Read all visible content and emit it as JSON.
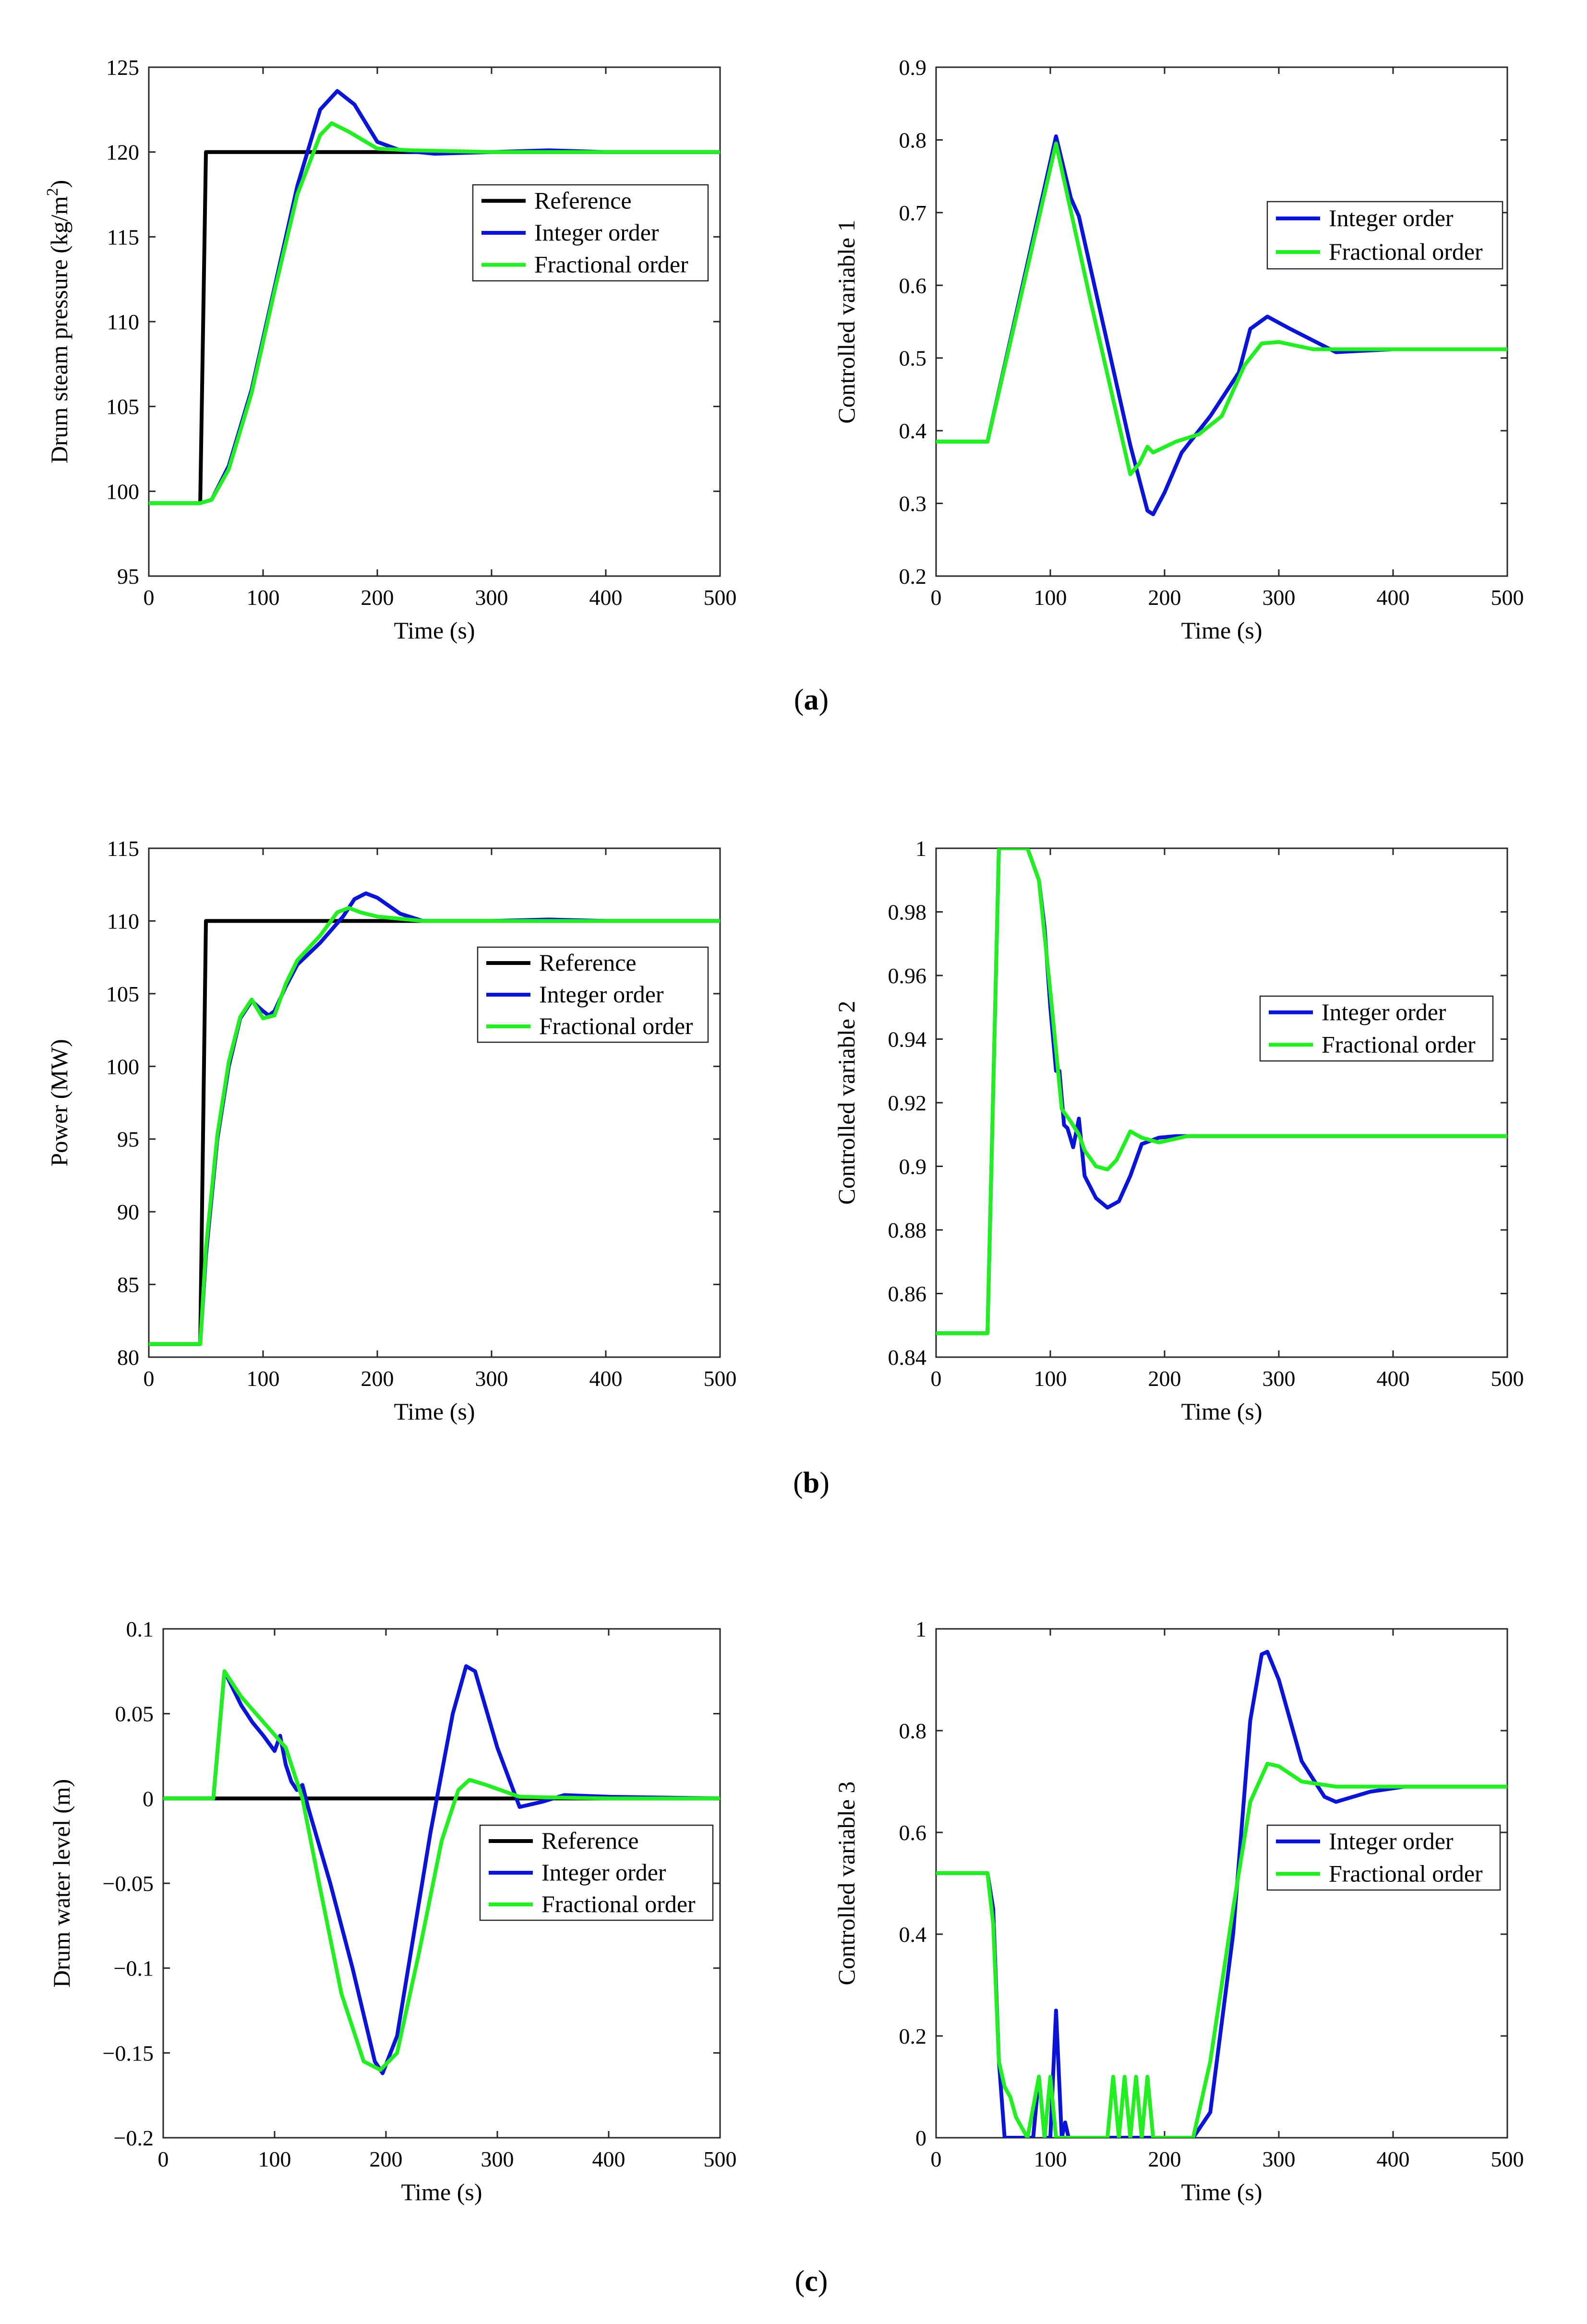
{
  "figure": {
    "captions": [
      {
        "open": "(",
        "letter": "a",
        "close": ")"
      },
      {
        "open": "(",
        "letter": "b",
        "close": ")"
      },
      {
        "open": "(",
        "letter": "c",
        "close": ")"
      }
    ]
  },
  "colors": {
    "Reference": "#000000",
    "Integer order": "#0a14d6",
    "Fractional order": "#22ee22"
  },
  "chart_data": [
    {
      "type": "line",
      "panel": "a-left",
      "title": "",
      "xlabel": "Time (s)",
      "ylabel": "Drum steam pressure (kg/m",
      "ylabel_sup": "2",
      "ylabel_suffix": ")",
      "xlim": [
        0,
        500
      ],
      "ylim": [
        95,
        125
      ],
      "xticks": [
        0,
        100,
        200,
        300,
        400,
        500
      ],
      "yticks": [
        95,
        100,
        105,
        110,
        115,
        120,
        125
      ],
      "legend": "inside",
      "series": [
        {
          "name": "Reference",
          "x": [
            0,
            45,
            50,
            500
          ],
          "y": [
            99.3,
            99.3,
            120,
            120
          ]
        },
        {
          "name": "Integer order",
          "x": [
            0,
            45,
            55,
            70,
            90,
            110,
            130,
            150,
            165,
            180,
            200,
            220,
            250,
            300,
            350,
            400,
            500
          ],
          "y": [
            99.3,
            99.3,
            99.5,
            101.5,
            106,
            112,
            118,
            122.5,
            123.6,
            122.8,
            120.6,
            120.1,
            119.9,
            120,
            120.1,
            120,
            120
          ]
        },
        {
          "name": "Fractional order",
          "x": [
            0,
            45,
            55,
            70,
            90,
            110,
            130,
            150,
            160,
            175,
            200,
            230,
            300,
            400,
            500
          ],
          "y": [
            99.3,
            99.3,
            99.5,
            101.3,
            105.8,
            111.8,
            117.5,
            121,
            121.7,
            121.2,
            120.2,
            120.1,
            120,
            120,
            120
          ]
        }
      ]
    },
    {
      "type": "line",
      "panel": "a-right",
      "title": "",
      "xlabel": "Time (s)",
      "ylabel": "Controlled variable 1",
      "xlim": [
        0,
        500
      ],
      "ylim": [
        0.2,
        0.9
      ],
      "xticks": [
        0,
        100,
        200,
        300,
        400,
        500
      ],
      "yticks": [
        0.2,
        0.3,
        0.4,
        0.5,
        0.6,
        0.7,
        0.8,
        0.9
      ],
      "legend": "inside",
      "series": [
        {
          "name": "Integer order",
          "x": [
            0,
            45,
            105,
            118,
            125,
            150,
            170,
            185,
            190,
            200,
            215,
            240,
            265,
            275,
            290,
            310,
            350,
            400,
            500
          ],
          "y": [
            0.385,
            0.385,
            0.805,
            0.72,
            0.695,
            0.52,
            0.38,
            0.29,
            0.285,
            0.315,
            0.37,
            0.42,
            0.48,
            0.54,
            0.557,
            0.54,
            0.508,
            0.512,
            0.512
          ]
        },
        {
          "name": "Fractional order",
          "x": [
            0,
            45,
            105,
            135,
            170,
            178,
            185,
            190,
            210,
            230,
            250,
            270,
            285,
            300,
            330,
            400,
            500
          ],
          "y": [
            0.385,
            0.385,
            0.795,
            0.58,
            0.34,
            0.355,
            0.378,
            0.37,
            0.385,
            0.395,
            0.42,
            0.49,
            0.52,
            0.522,
            0.512,
            0.512,
            0.512
          ]
        }
      ]
    },
    {
      "type": "line",
      "panel": "b-left",
      "title": "",
      "xlabel": "Time (s)",
      "ylabel": "Power (MW)",
      "xlim": [
        0,
        500
      ],
      "ylim": [
        80,
        115
      ],
      "xticks": [
        0,
        100,
        200,
        300,
        400,
        500
      ],
      "yticks": [
        80,
        85,
        90,
        95,
        100,
        105,
        110,
        115
      ],
      "legend": "inside",
      "series": [
        {
          "name": "Reference",
          "x": [
            0,
            45,
            50,
            500
          ],
          "y": [
            80.9,
            80.9,
            110,
            110
          ]
        },
        {
          "name": "Integer order",
          "x": [
            0,
            45,
            50,
            60,
            70,
            80,
            90,
            100,
            105,
            110,
            120,
            130,
            150,
            170,
            180,
            190,
            200,
            220,
            240,
            300,
            350,
            400,
            500
          ],
          "y": [
            80.9,
            80.9,
            87,
            95,
            100,
            103.3,
            104.5,
            103.8,
            103.5,
            103.8,
            105.5,
            107,
            108.5,
            110.3,
            111.5,
            111.9,
            111.6,
            110.5,
            110,
            110,
            110.1,
            110,
            110
          ]
        },
        {
          "name": "Fractional order",
          "x": [
            0,
            45,
            50,
            60,
            70,
            80,
            90,
            100,
            110,
            120,
            130,
            150,
            165,
            175,
            185,
            200,
            240,
            300,
            500
          ],
          "y": [
            80.9,
            80.9,
            87.5,
            95.3,
            100.3,
            103.4,
            104.6,
            103.3,
            103.5,
            105.7,
            107.3,
            109,
            110.6,
            110.9,
            110.6,
            110.3,
            110,
            110,
            110
          ]
        }
      ]
    },
    {
      "type": "line",
      "panel": "b-right",
      "title": "",
      "xlabel": "Time (s)",
      "ylabel": "Controlled variable 2",
      "xlim": [
        0,
        500
      ],
      "ylim": [
        0.84,
        1
      ],
      "xticks": [
        0,
        100,
        200,
        300,
        400,
        500
      ],
      "yticks": [
        0.84,
        0.86,
        0.88,
        0.9,
        0.92,
        0.94,
        0.96,
        0.98,
        1
      ],
      "legend": "inside",
      "series": [
        {
          "name": "Integer order",
          "x": [
            0,
            45,
            55,
            80,
            90,
            95,
            100,
            105,
            108,
            112,
            115,
            120,
            125,
            130,
            140,
            150,
            160,
            170,
            180,
            195,
            210,
            250,
            300,
            400,
            500
          ],
          "y": [
            0.8475,
            0.8475,
            1,
            1,
            0.99,
            0.975,
            0.95,
            0.93,
            0.93,
            0.913,
            0.912,
            0.906,
            0.915,
            0.897,
            0.89,
            0.887,
            0.889,
            0.897,
            0.907,
            0.909,
            0.9095,
            0.9095,
            0.9095,
            0.9095,
            0.9095
          ]
        },
        {
          "name": "Fractional order",
          "x": [
            0,
            45,
            55,
            80,
            90,
            100,
            110,
            118,
            125,
            130,
            140,
            150,
            158,
            170,
            180,
            195,
            220,
            300,
            500
          ],
          "y": [
            0.8475,
            0.8475,
            1,
            1,
            0.99,
            0.955,
            0.918,
            0.914,
            0.91,
            0.905,
            0.9,
            0.899,
            0.902,
            0.911,
            0.909,
            0.9075,
            0.9095,
            0.9095,
            0.9095
          ]
        }
      ]
    },
    {
      "type": "line",
      "panel": "c-left",
      "title": "",
      "xlabel": "Time (s)",
      "ylabel": "Drum water level (m)",
      "xlim": [
        0,
        500
      ],
      "ylim": [
        -0.2,
        0.1
      ],
      "xticks": [
        0,
        100,
        200,
        300,
        400,
        500
      ],
      "yticks": [
        -0.2,
        -0.15,
        -0.1,
        -0.05,
        0,
        0.05,
        0.1
      ],
      "ytick_labels": [
        "−0.2",
        "−0.15",
        "−0.1",
        "−0.05",
        "0",
        "0.05",
        "0.1"
      ],
      "legend": "inside",
      "series": [
        {
          "name": "Reference",
          "x": [
            0,
            500
          ],
          "y": [
            0,
            0
          ]
        },
        {
          "name": "Integer order",
          "x": [
            0,
            45,
            55,
            70,
            80,
            90,
            100,
            105,
            110,
            115,
            120,
            125,
            130,
            150,
            170,
            190,
            197,
            210,
            240,
            260,
            272,
            280,
            300,
            320,
            340,
            360,
            400,
            500
          ],
          "y": [
            0,
            0,
            0.075,
            0.055,
            0.045,
            0.037,
            0.028,
            0.037,
            0.02,
            0.01,
            0.005,
            0.008,
            -0.005,
            -0.05,
            -0.1,
            -0.155,
            -0.162,
            -0.14,
            -0.02,
            0.05,
            0.078,
            0.075,
            0.03,
            -0.005,
            -0.002,
            0.002,
            0.001,
            0
          ]
        },
        {
          "name": "Fractional order",
          "x": [
            0,
            45,
            55,
            70,
            90,
            110,
            125,
            140,
            160,
            180,
            195,
            210,
            230,
            250,
            265,
            275,
            290,
            320,
            400,
            500
          ],
          "y": [
            0,
            0,
            0.075,
            0.06,
            0.045,
            0.03,
            0.0,
            -0.05,
            -0.115,
            -0.155,
            -0.16,
            -0.15,
            -0.09,
            -0.025,
            0.005,
            0.011,
            0.008,
            0.001,
            0,
            0
          ]
        }
      ]
    },
    {
      "type": "line",
      "panel": "c-right",
      "title": "",
      "xlabel": "Time (s)",
      "ylabel": "Controlled variable 3",
      "xlim": [
        0,
        500
      ],
      "ylim": [
        0,
        1
      ],
      "xticks": [
        0,
        100,
        200,
        300,
        400,
        500
      ],
      "yticks": [
        0,
        0.2,
        0.4,
        0.6,
        0.8,
        1
      ],
      "legend": "inside",
      "series": [
        {
          "name": "Integer order",
          "x": [
            0,
            45,
            50,
            55,
            60,
            85,
            90,
            95,
            100,
            105,
            110,
            113,
            116,
            120,
            225,
            240,
            260,
            275,
            285,
            290,
            300,
            320,
            340,
            350,
            380,
            410,
            450,
            500
          ],
          "y": [
            0.52,
            0.52,
            0.45,
            0.15,
            0,
            0,
            0.12,
            0,
            0,
            0.25,
            0,
            0.03,
            0,
            0,
            0,
            0.05,
            0.4,
            0.82,
            0.95,
            0.955,
            0.9,
            0.74,
            0.67,
            0.66,
            0.68,
            0.69,
            0.69,
            0.69
          ]
        },
        {
          "name": "Fractional order",
          "x": [
            0,
            45,
            50,
            55,
            60,
            65,
            70,
            80,
            90,
            95,
            100,
            105,
            110,
            120,
            150,
            155,
            160,
            165,
            170,
            175,
            180,
            185,
            190,
            225,
            240,
            260,
            275,
            290,
            300,
            320,
            350,
            400,
            500
          ],
          "y": [
            0.52,
            0.52,
            0.42,
            0.15,
            0.1,
            0.08,
            0.04,
            0,
            0.12,
            0,
            0.12,
            0,
            0,
            0,
            0,
            0.12,
            0,
            0.12,
            0,
            0.12,
            0,
            0.12,
            0,
            0,
            0.15,
            0.45,
            0.66,
            0.735,
            0.73,
            0.7,
            0.69,
            0.69,
            0.69
          ]
        }
      ]
    }
  ]
}
